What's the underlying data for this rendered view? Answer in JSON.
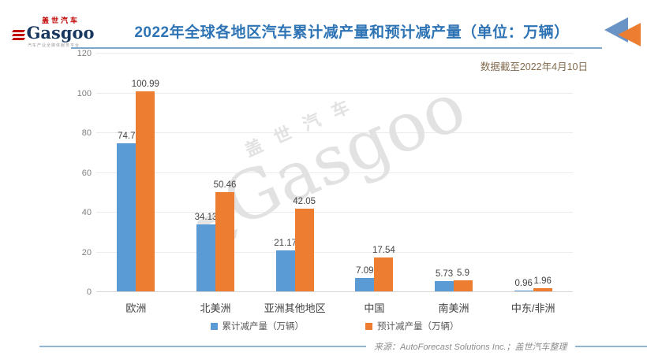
{
  "header": {
    "logo": {
      "brand_cn": "盖世汽车",
      "brand_en": "Gasgoo",
      "tagline": "汽车产业全媒体服务平台"
    },
    "title": "2022年全球各地区汽车累计减产量和预计减产量（单位：万辆）",
    "note": "数据截至2022年4月10日"
  },
  "watermark": {
    "cn": "盖世汽车",
    "en": "Gasgoo"
  },
  "chart_data": {
    "type": "bar",
    "title": "2022年全球各地区汽车累计减产量和预计减产量（单位：万辆）",
    "categories": [
      "欧洲",
      "北美洲",
      "亚洲其他地区",
      "中国",
      "南美洲",
      "中东/非洲"
    ],
    "series": [
      {
        "name": "累计减产量（万辆）",
        "color": "#5B9BD5",
        "values": [
          74.7,
          34.13,
          21.17,
          7.09,
          5.73,
          0.96
        ]
      },
      {
        "name": "预计减产量（万辆）",
        "color": "#ED7D31",
        "values": [
          100.99,
          50.46,
          42.05,
          17.54,
          5.9,
          1.96
        ]
      }
    ],
    "xlabel": "",
    "ylabel": "",
    "ylim": [
      0,
      120
    ],
    "yticks": [
      0,
      20,
      40,
      60,
      80,
      100,
      120
    ],
    "grid": true,
    "legend_position": "bottom"
  },
  "footer": {
    "source": "来源：AutoForecast Solutions Inc.；盖世汽车整理"
  },
  "colors": {
    "title_blue": "#2E74B5",
    "note_brown": "#836B4D",
    "bar_blue": "#5B9BD5",
    "bar_orange": "#ED7D31",
    "brand_red": "#C00000",
    "brand_navy": "#17375E"
  }
}
